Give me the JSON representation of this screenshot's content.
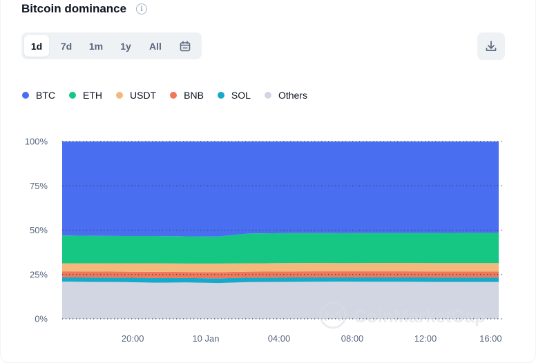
{
  "header": {
    "title": "Bitcoin dominance",
    "info_icon": "info-icon"
  },
  "range_tabs": [
    {
      "label": "1d",
      "active": true
    },
    {
      "label": "7d",
      "active": false
    },
    {
      "label": "1m",
      "active": false
    },
    {
      "label": "1y",
      "active": false
    },
    {
      "label": "All",
      "active": false
    }
  ],
  "calendar_icon": "calendar-icon",
  "download_icon": "download-icon",
  "watermark": "CoinMarketCap",
  "colors": {
    "accent_text": "#58667e",
    "button_bg": "#eff2f5"
  },
  "chart_data": {
    "type": "area",
    "stacked": true,
    "ylim": [
      0,
      100
    ],
    "yticks": [
      "0%",
      "25%",
      "50%",
      "75%",
      "100%"
    ],
    "xticks": [
      "20:00",
      "10 Jan",
      "04:00",
      "08:00",
      "12:00",
      "16:00"
    ],
    "grid": "horizontal dotted",
    "legend_position": "top-left",
    "x": [
      "16:40",
      "18:00",
      "20:00",
      "22:00",
      "10 Jan 00:00",
      "02:00",
      "02:30",
      "04:00",
      "06:00",
      "08:00",
      "10:00",
      "12:00",
      "14:00",
      "16:00",
      "16:20"
    ],
    "series": [
      {
        "name": "Others",
        "color": "#d1d6e2",
        "values": [
          21.0,
          20.8,
          20.7,
          20.4,
          20.5,
          20.2,
          20.7,
          20.8,
          20.9,
          21.0,
          20.9,
          20.9,
          20.8,
          20.8,
          20.8
        ]
      },
      {
        "name": "SOL",
        "color": "#17a9c9",
        "values": [
          2.4,
          2.5,
          2.5,
          2.6,
          2.5,
          2.6,
          2.5,
          2.5,
          2.5,
          2.4,
          2.5,
          2.5,
          2.5,
          2.5,
          2.5
        ]
      },
      {
        "name": "BNB",
        "color": "#f0785a",
        "values": [
          3.4,
          3.4,
          3.4,
          3.5,
          3.4,
          3.5,
          3.4,
          3.4,
          3.4,
          3.4,
          3.4,
          3.4,
          3.4,
          3.4,
          3.4
        ]
      },
      {
        "name": "USDT",
        "color": "#f3b97c",
        "values": [
          4.5,
          4.6,
          4.7,
          4.8,
          4.8,
          4.9,
          4.7,
          4.7,
          4.7,
          4.6,
          4.7,
          4.7,
          4.7,
          4.7,
          4.7
        ]
      },
      {
        "name": "ETH",
        "color": "#16c784",
        "values": [
          15.7,
          15.5,
          15.4,
          15.4,
          15.3,
          15.2,
          16.8,
          16.9,
          16.9,
          16.9,
          16.9,
          16.9,
          17.0,
          17.1,
          17.1
        ]
      },
      {
        "name": "BTC",
        "color": "#4a6ef0",
        "values": [
          53.0,
          53.2,
          53.3,
          53.3,
          53.5,
          53.6,
          51.9,
          51.7,
          51.6,
          51.7,
          51.6,
          51.6,
          51.6,
          51.5,
          51.5
        ]
      }
    ]
  }
}
